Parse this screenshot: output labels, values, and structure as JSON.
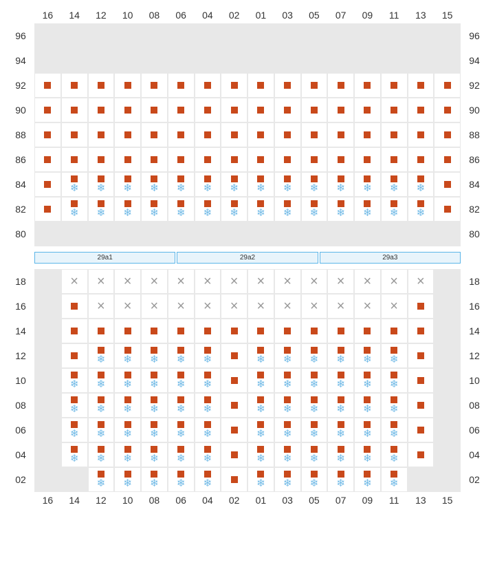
{
  "columns": [
    "16",
    "14",
    "12",
    "10",
    "08",
    "06",
    "04",
    "02",
    "01",
    "03",
    "05",
    "07",
    "09",
    "11",
    "13",
    "15"
  ],
  "sections": [
    "29a1",
    "29a2",
    "29a3"
  ],
  "top_block": {
    "rows": [
      {
        "label": "96",
        "cells": [
          "e",
          "e",
          "e",
          "e",
          "e",
          "e",
          "e",
          "e",
          "e",
          "e",
          "e",
          "e",
          "e",
          "e",
          "e",
          "e"
        ]
      },
      {
        "label": "94",
        "cells": [
          "e",
          "e",
          "e",
          "e",
          "e",
          "e",
          "e",
          "e",
          "e",
          "e",
          "e",
          "e",
          "e",
          "e",
          "e",
          "e"
        ]
      },
      {
        "label": "92",
        "cells": [
          "m",
          "m",
          "m",
          "m",
          "m",
          "m",
          "m",
          "m",
          "m",
          "m",
          "m",
          "m",
          "m",
          "m",
          "m",
          "m"
        ]
      },
      {
        "label": "90",
        "cells": [
          "m",
          "m",
          "m",
          "m",
          "m",
          "m",
          "m",
          "m",
          "m",
          "m",
          "m",
          "m",
          "m",
          "m",
          "m",
          "m"
        ]
      },
      {
        "label": "88",
        "cells": [
          "m",
          "m",
          "m",
          "m",
          "m",
          "m",
          "m",
          "m",
          "m",
          "m",
          "m",
          "m",
          "m",
          "m",
          "m",
          "m"
        ]
      },
      {
        "label": "86",
        "cells": [
          "m",
          "m",
          "m",
          "m",
          "m",
          "m",
          "m",
          "m",
          "m",
          "m",
          "m",
          "m",
          "m",
          "m",
          "m",
          "m"
        ]
      },
      {
        "label": "84",
        "cells": [
          "m",
          "ms",
          "ms",
          "ms",
          "ms",
          "ms",
          "ms",
          "ms",
          "ms",
          "ms",
          "ms",
          "ms",
          "ms",
          "ms",
          "ms",
          "m"
        ]
      },
      {
        "label": "82",
        "cells": [
          "m",
          "ms",
          "ms",
          "ms",
          "ms",
          "ms",
          "ms",
          "ms",
          "ms",
          "ms",
          "ms",
          "ms",
          "ms",
          "ms",
          "ms",
          "m"
        ]
      },
      {
        "label": "80",
        "cells": [
          "e",
          "e",
          "e",
          "e",
          "e",
          "e",
          "e",
          "e",
          "e",
          "e",
          "e",
          "e",
          "e",
          "e",
          "e",
          "e"
        ]
      }
    ]
  },
  "bottom_block": {
    "rows": [
      {
        "label": "18",
        "cells": [
          "e",
          "x",
          "x",
          "x",
          "x",
          "x",
          "x",
          "x",
          "x",
          "x",
          "x",
          "x",
          "x",
          "x",
          "x",
          "e"
        ]
      },
      {
        "label": "16",
        "cells": [
          "e",
          "m",
          "x",
          "x",
          "x",
          "x",
          "x",
          "x",
          "x",
          "x",
          "x",
          "x",
          "x",
          "x",
          "m",
          "e"
        ]
      },
      {
        "label": "14",
        "cells": [
          "e",
          "m",
          "m",
          "m",
          "m",
          "m",
          "m",
          "m",
          "m",
          "m",
          "m",
          "m",
          "m",
          "m",
          "m",
          "e"
        ]
      },
      {
        "label": "12",
        "cells": [
          "e",
          "m",
          "ms",
          "ms",
          "ms",
          "ms",
          "ms",
          "m",
          "ms",
          "ms",
          "ms",
          "ms",
          "ms",
          "ms",
          "m",
          "e"
        ]
      },
      {
        "label": "10",
        "cells": [
          "e",
          "ms",
          "ms",
          "ms",
          "ms",
          "ms",
          "ms",
          "m",
          "ms",
          "ms",
          "ms",
          "ms",
          "ms",
          "ms",
          "m",
          "e"
        ]
      },
      {
        "label": "08",
        "cells": [
          "e",
          "ms",
          "ms",
          "ms",
          "ms",
          "ms",
          "ms",
          "m",
          "ms",
          "ms",
          "ms",
          "ms",
          "ms",
          "ms",
          "m",
          "e"
        ]
      },
      {
        "label": "06",
        "cells": [
          "e",
          "ms",
          "ms",
          "ms",
          "ms",
          "ms",
          "ms",
          "m",
          "ms",
          "ms",
          "ms",
          "ms",
          "ms",
          "ms",
          "m",
          "e"
        ]
      },
      {
        "label": "04",
        "cells": [
          "e",
          "ms",
          "ms",
          "ms",
          "ms",
          "ms",
          "ms",
          "m",
          "ms",
          "ms",
          "ms",
          "ms",
          "ms",
          "ms",
          "m",
          "e"
        ]
      },
      {
        "label": "02",
        "cells": [
          "e",
          "e",
          "ms",
          "ms",
          "ms",
          "ms",
          "ms",
          "m",
          "ms",
          "ms",
          "ms",
          "ms",
          "ms",
          "ms",
          "e",
          "e"
        ]
      }
    ]
  },
  "colors": {
    "marker": "#c9491b",
    "snow": "#6fb9e6",
    "x": "#999999",
    "empty_bg": "#e8e8e8",
    "cell_border": "#e8e8e8",
    "section_border": "#5bb5e8",
    "section_bg": "#e8f4fb"
  }
}
